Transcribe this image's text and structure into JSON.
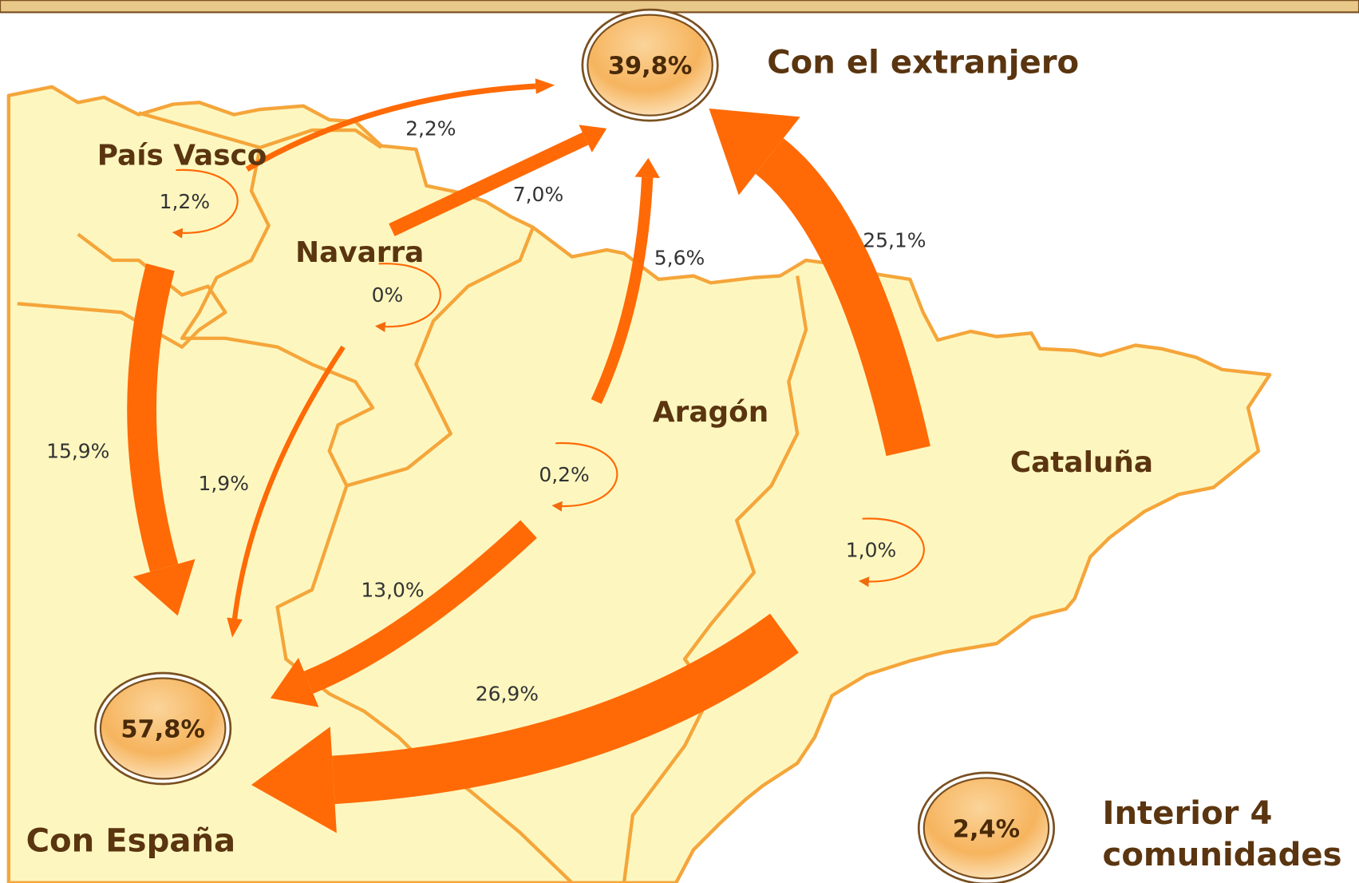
{
  "regions": [
    "País Vasco",
    "Navarra",
    "Aragón",
    "Cataluña"
  ],
  "totals": [
    {
      "label": "39,8%",
      "caption": [
        "Con el extranjero"
      ]
    },
    {
      "label": "57,8%",
      "caption": [
        "Con España"
      ]
    },
    {
      "label": "2,4%",
      "caption": [
        "Interior 4",
        "comunidades"
      ]
    }
  ],
  "flows": [
    {
      "value": 2.2,
      "label": "2,2%"
    },
    {
      "value": 7.0,
      "label": "7,0%"
    },
    {
      "value": 5.6,
      "label": "5,6%"
    },
    {
      "value": 25.1,
      "label": "25,1%"
    },
    {
      "value": 15.9,
      "label": "15,9%"
    },
    {
      "value": 1.9,
      "label": "1,9%"
    },
    {
      "value": 13.0,
      "label": "13,0%"
    },
    {
      "value": 26.9,
      "label": "26,9%"
    }
  ],
  "internal": [
    {
      "value": 1.2,
      "label": "1,2%"
    },
    {
      "value": 0,
      "label": "0%"
    },
    {
      "value": 0.2,
      "label": "0,2%"
    },
    {
      "value": 1.0,
      "label": "1,0%"
    }
  ]
}
